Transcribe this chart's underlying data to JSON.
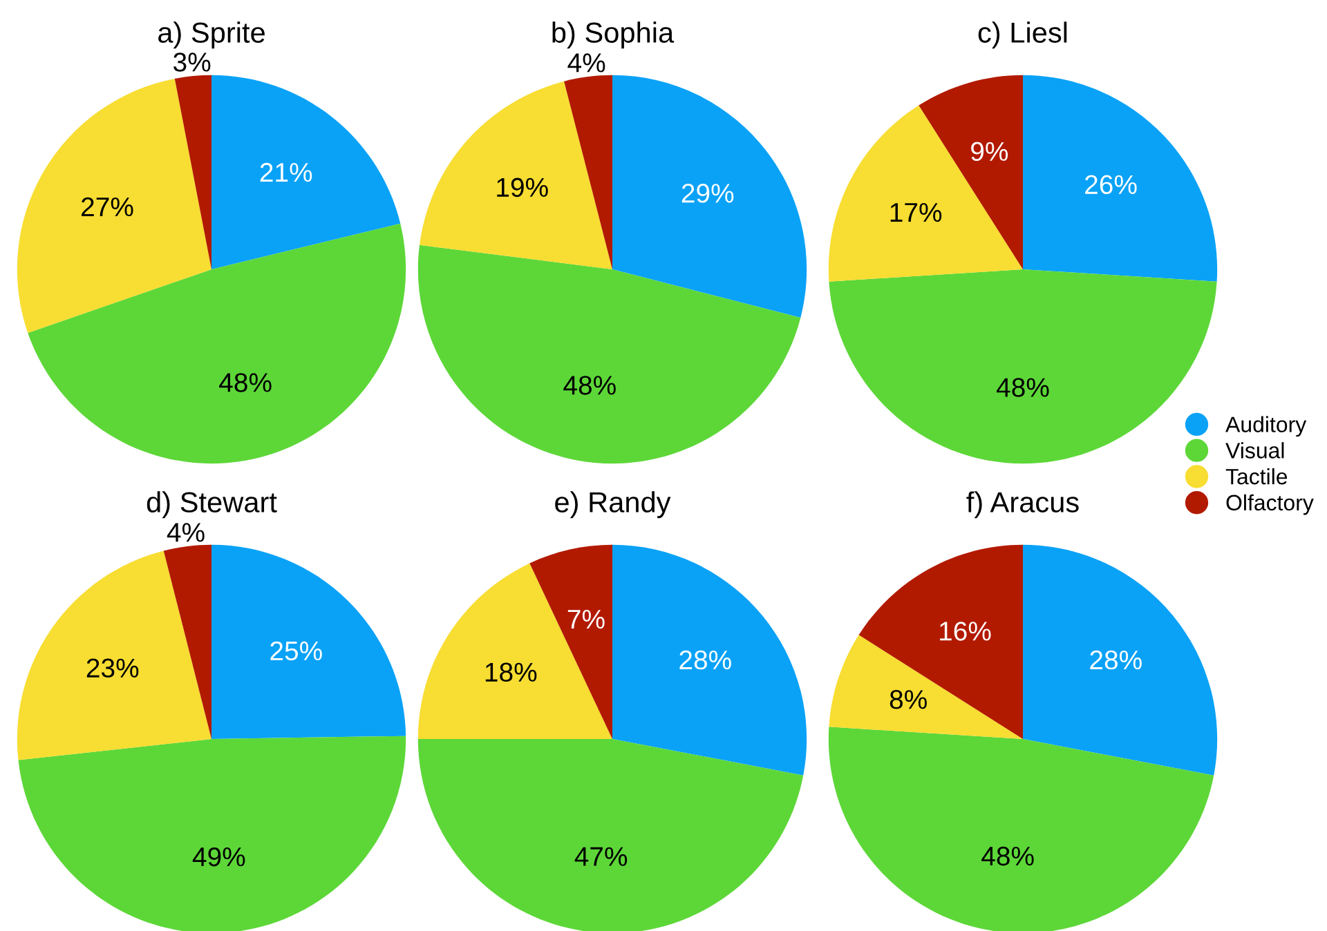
{
  "chart_data": [
    {
      "type": "pie",
      "title": "a) Sprite",
      "categories": [
        "Auditory",
        "Visual",
        "Tactile",
        "Olfactory"
      ],
      "values": [
        21,
        48,
        27,
        3
      ],
      "value_labels": [
        "21%",
        "48%",
        "27%",
        "3%"
      ],
      "colors": [
        "#0aa2f7",
        "#5dd738",
        "#f8dd32",
        "#b21a00"
      ],
      "legend": "right"
    },
    {
      "type": "pie",
      "title": "b) Sophia",
      "categories": [
        null,
        null,
        null,
        null
      ],
      "values": [
        29,
        48,
        19,
        4
      ],
      "value_labels": [
        "29%",
        "48%",
        "19%",
        "4%"
      ],
      "colors": [
        "#0aa2f7",
        "#5dd738",
        "#f8dd32",
        "#b21a00"
      ]
    },
    {
      "type": "pie",
      "title": "c) Liesl",
      "categories": [
        null,
        null,
        null,
        null
      ],
      "values": [
        26,
        48,
        17,
        9
      ],
      "value_labels": [
        "26%",
        "48%",
        "17%",
        "9%"
      ],
      "colors": [
        "#0aa2f7",
        "#5dd738",
        "#f8dd32",
        "#b21a00"
      ]
    },
    {
      "type": "pie",
      "title": "d) Stewart",
      "categories": [
        null,
        null,
        null,
        null
      ],
      "values": [
        25,
        49,
        23,
        4
      ],
      "value_labels": [
        "25%",
        "49%",
        "23%",
        "4%"
      ],
      "colors": [
        "#0aa2f7",
        "#5dd738",
        "#f8dd32",
        "#b21a00"
      ]
    },
    {
      "type": "pie",
      "title": "e) Randy",
      "categories": [
        null,
        null,
        null,
        null
      ],
      "values": [
        28,
        47,
        18,
        7
      ],
      "value_labels": [
        "28%",
        "47%",
        "18%",
        "7%"
      ],
      "colors": [
        "#0aa2f7",
        "#5dd738",
        "#f8dd32",
        "#b21a00"
      ]
    },
    {
      "type": "pie",
      "title": "f) Aracus",
      "categories": [
        null,
        null,
        null,
        null
      ],
      "values": [
        28,
        48,
        8,
        16
      ],
      "value_labels": [
        "28%",
        "48%",
        "8%",
        "16%"
      ],
      "colors": [
        "#0aa2f7",
        "#5dd738",
        "#f8dd32",
        "#b21a00"
      ]
    }
  ]
}
